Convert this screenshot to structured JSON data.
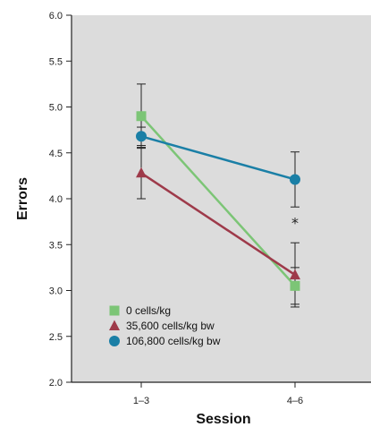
{
  "chart_data": {
    "type": "line",
    "categories": [
      "1–3",
      "4–6"
    ],
    "xlabel": "Session",
    "ylabel": "Errors",
    "ylim": [
      2.0,
      6.0
    ],
    "yticks": [
      "2.0",
      "2.5",
      "3.0",
      "3.5",
      "4.0",
      "4.5",
      "5.0",
      "5.5",
      "6.0"
    ],
    "grid": false,
    "legend_position": "bottom-left",
    "series": [
      {
        "name": "0 cells/kg",
        "marker": "square",
        "color": "#7cc576",
        "values": [
          4.9,
          3.05
        ],
        "error": [
          0.35,
          0.2
        ]
      },
      {
        "name": "35,600 cells/kg bw",
        "marker": "triangle",
        "color": "#9e3a4a",
        "values": [
          4.28,
          3.17
        ],
        "error": [
          0.28,
          0.35
        ]
      },
      {
        "name": "106,800 cells/kg bw",
        "marker": "circle",
        "color": "#1a7fa6",
        "values": [
          4.68,
          4.21
        ],
        "error": [
          0.1,
          0.3
        ]
      }
    ],
    "annotations": [
      {
        "text": "*",
        "category": "4–6",
        "y": 3.78
      }
    ]
  },
  "colors": {
    "plot_background": "#dcdcdc",
    "axis": "#222222"
  }
}
